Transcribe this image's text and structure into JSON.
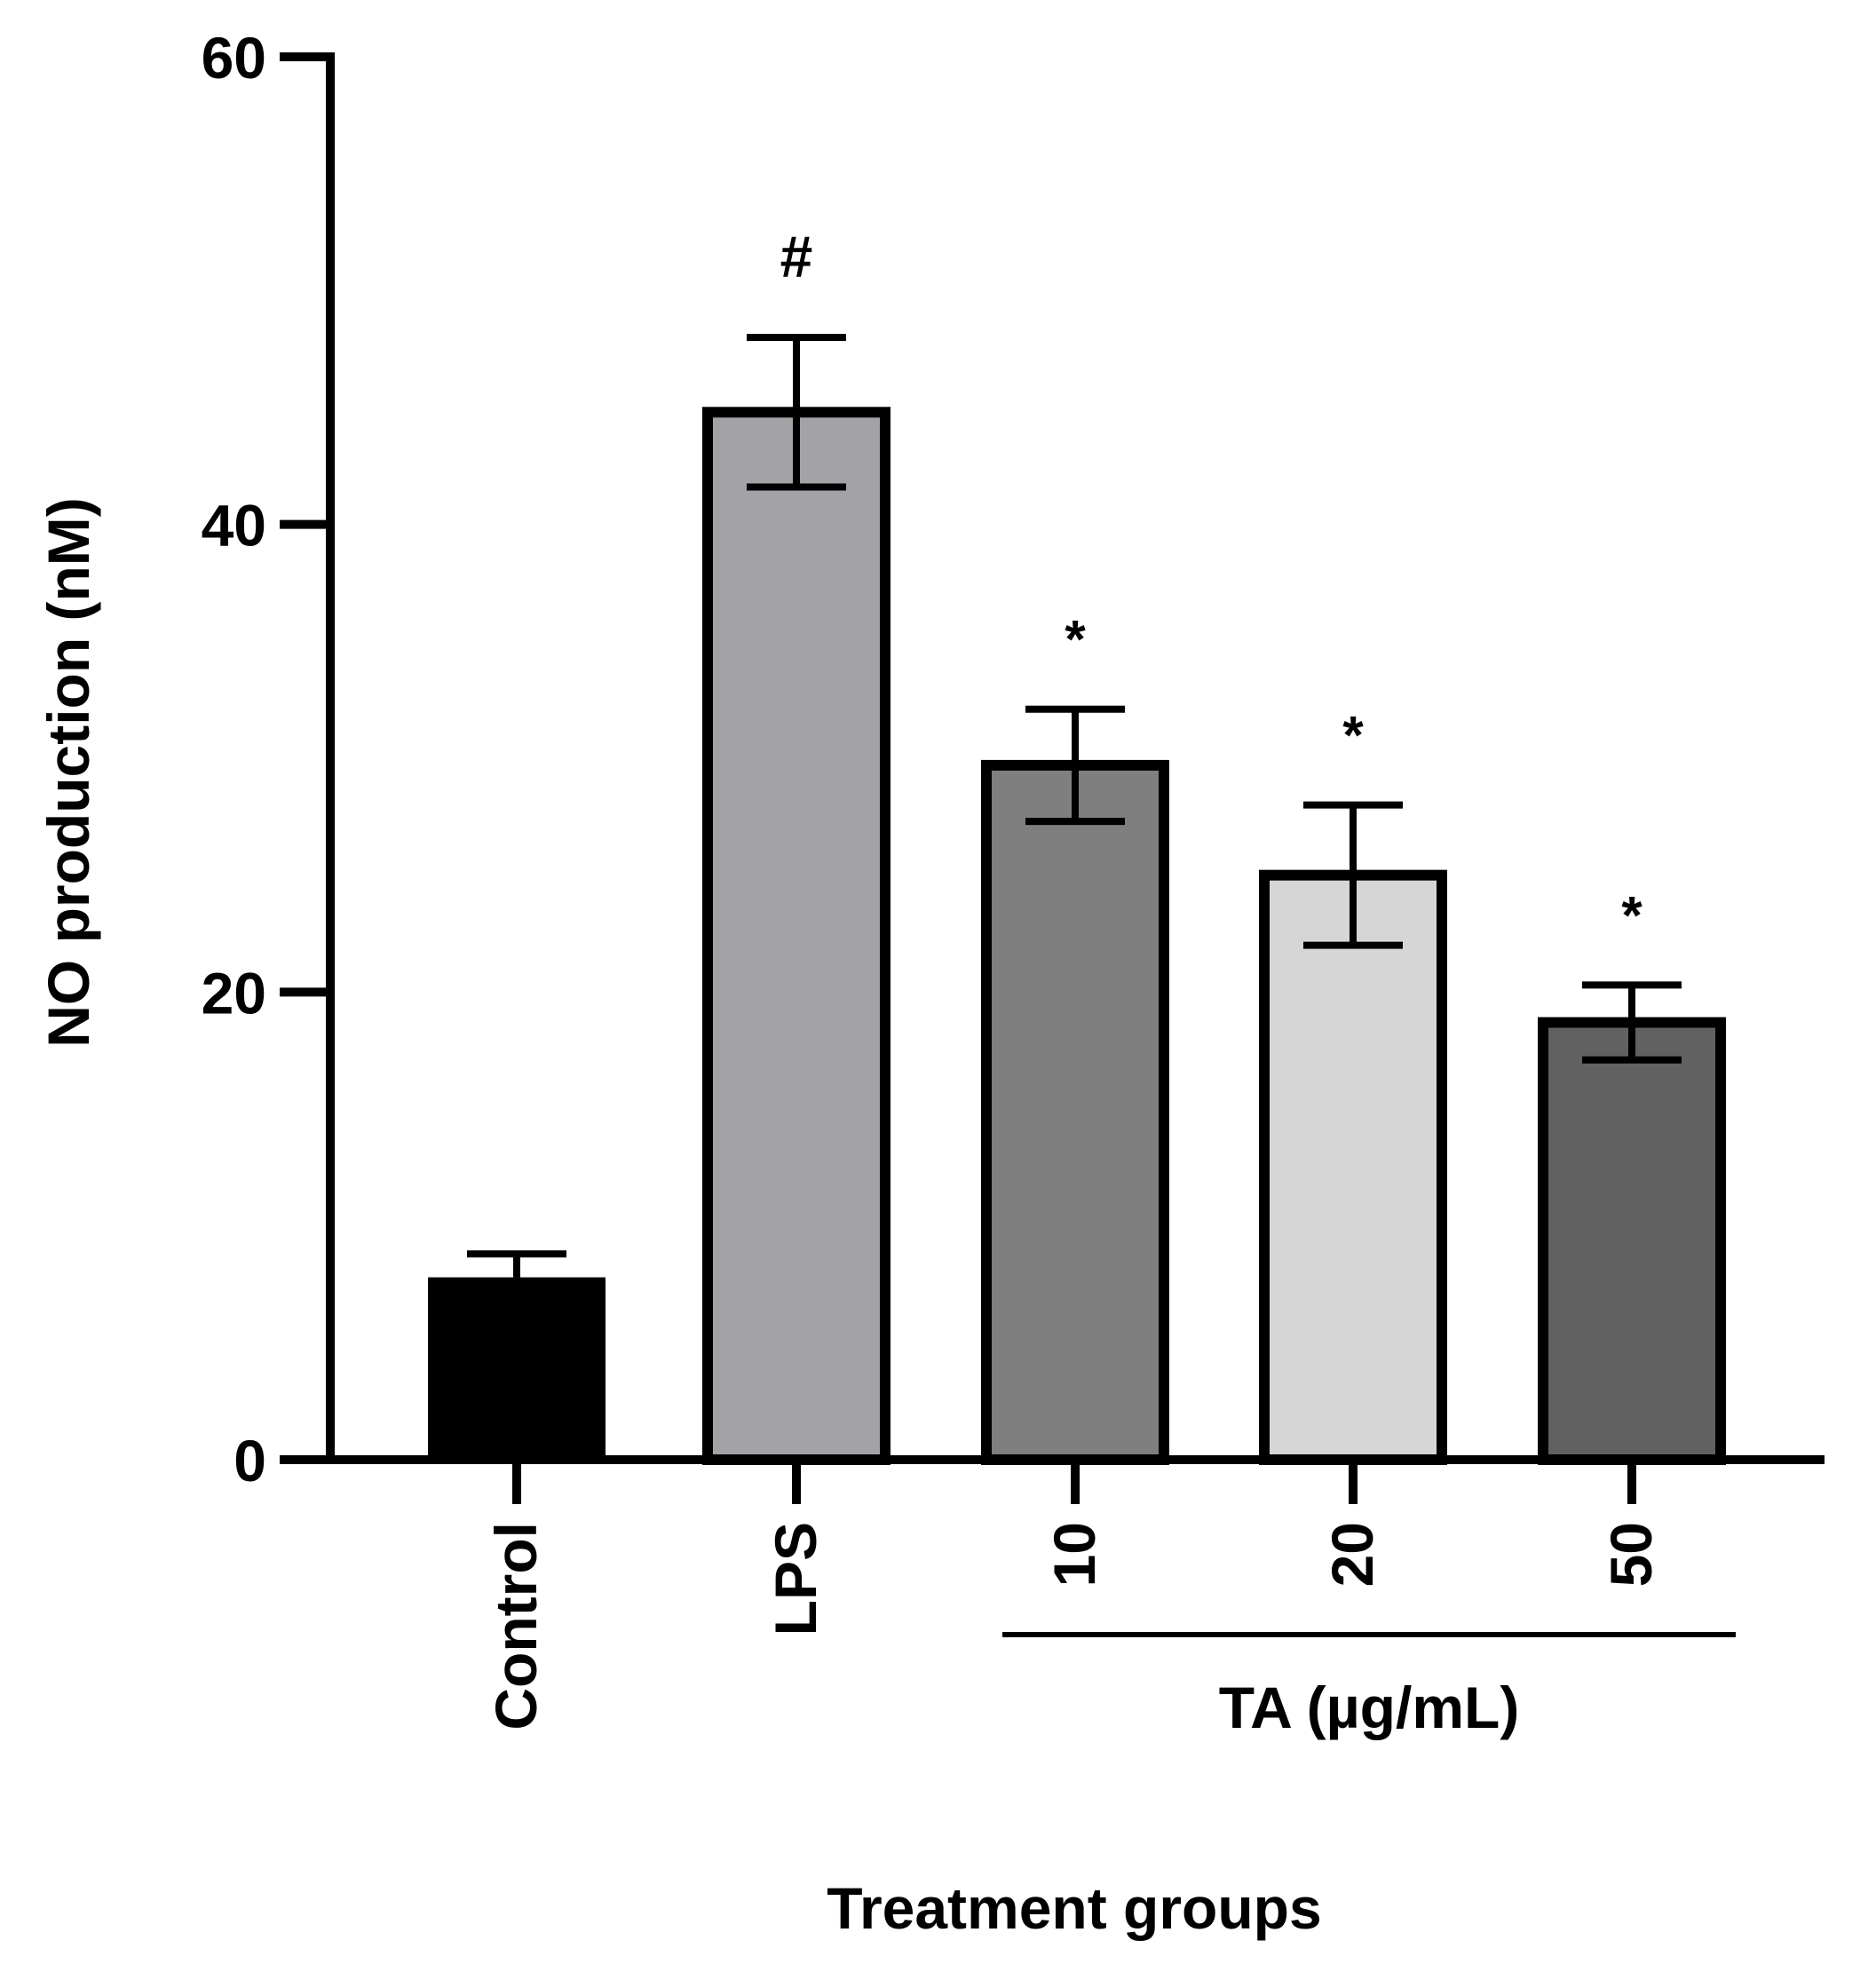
{
  "chart_data": {
    "type": "bar",
    "title": "",
    "xlabel": "Treatment groups",
    "ylabel": "NO production (nM)",
    "ylim": [
      0,
      60
    ],
    "yticks": [
      0,
      20,
      40,
      60
    ],
    "ytick_labels": [
      "0",
      "20",
      "40",
      "60"
    ],
    "categories": [
      "Control",
      "LPS",
      "10",
      "20",
      "50"
    ],
    "values": [
      7.8,
      44.8,
      29.7,
      25.0,
      18.7
    ],
    "errors": [
      1.0,
      3.2,
      2.4,
      3.0,
      1.6
    ],
    "annotations": [
      "",
      "#",
      "*",
      "*",
      "*"
    ],
    "colors": [
      "#000000",
      "#a3a3a7",
      "#7f7f7f",
      "#d6d6d6",
      "#616161"
    ],
    "group_label": "TA (µg/mL)",
    "group_members": [
      "10",
      "20",
      "50"
    ],
    "grid": false,
    "legend": "none"
  }
}
